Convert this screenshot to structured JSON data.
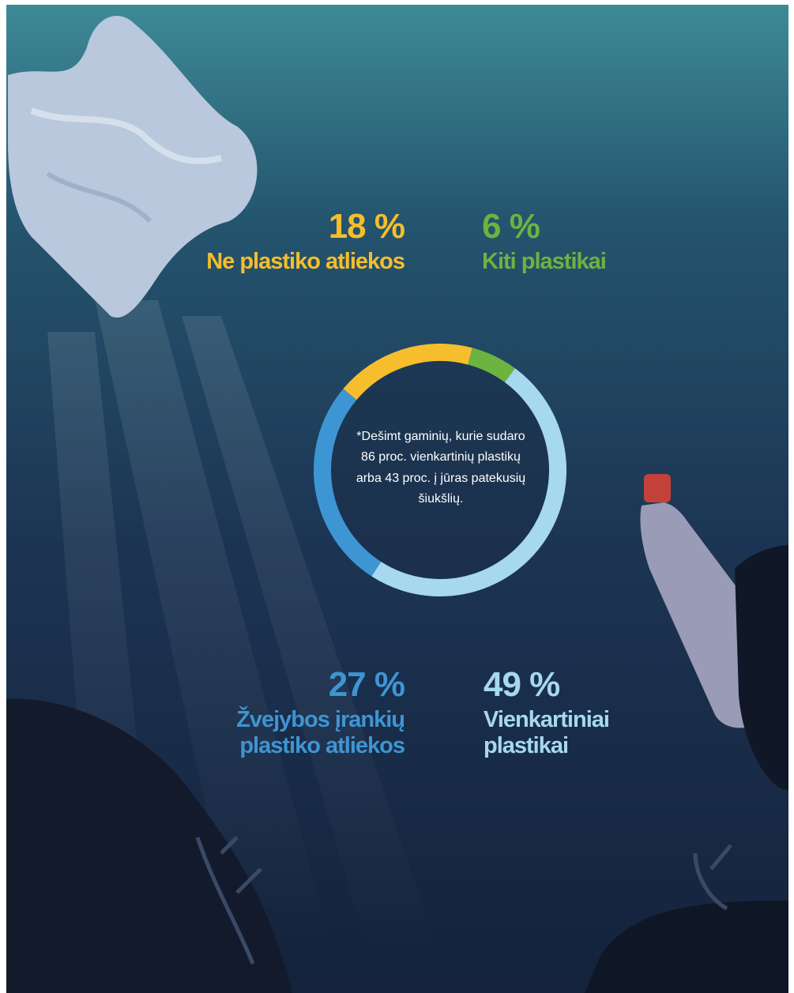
{
  "chart_data": {
    "type": "donut",
    "categories": [
      "Ne plastiko atliekos",
      "Kiti plastikai",
      "Vienkartiniai plastikai",
      "Žvejybos įrankių plastiko atliekos"
    ],
    "values": [
      18,
      6,
      49,
      27
    ],
    "value_labels": [
      "18 %",
      "6 %",
      "49 %",
      "27 %"
    ],
    "colors": [
      "#f6be2c",
      "#6db33f",
      "#a6d8ef",
      "#3e95d3"
    ],
    "note": "*Dešimt gaminių, kurie sudaro 86 proc. vienkartinių plastikų arba 43 proc. į jūras patekusių šiukšlių."
  }
}
